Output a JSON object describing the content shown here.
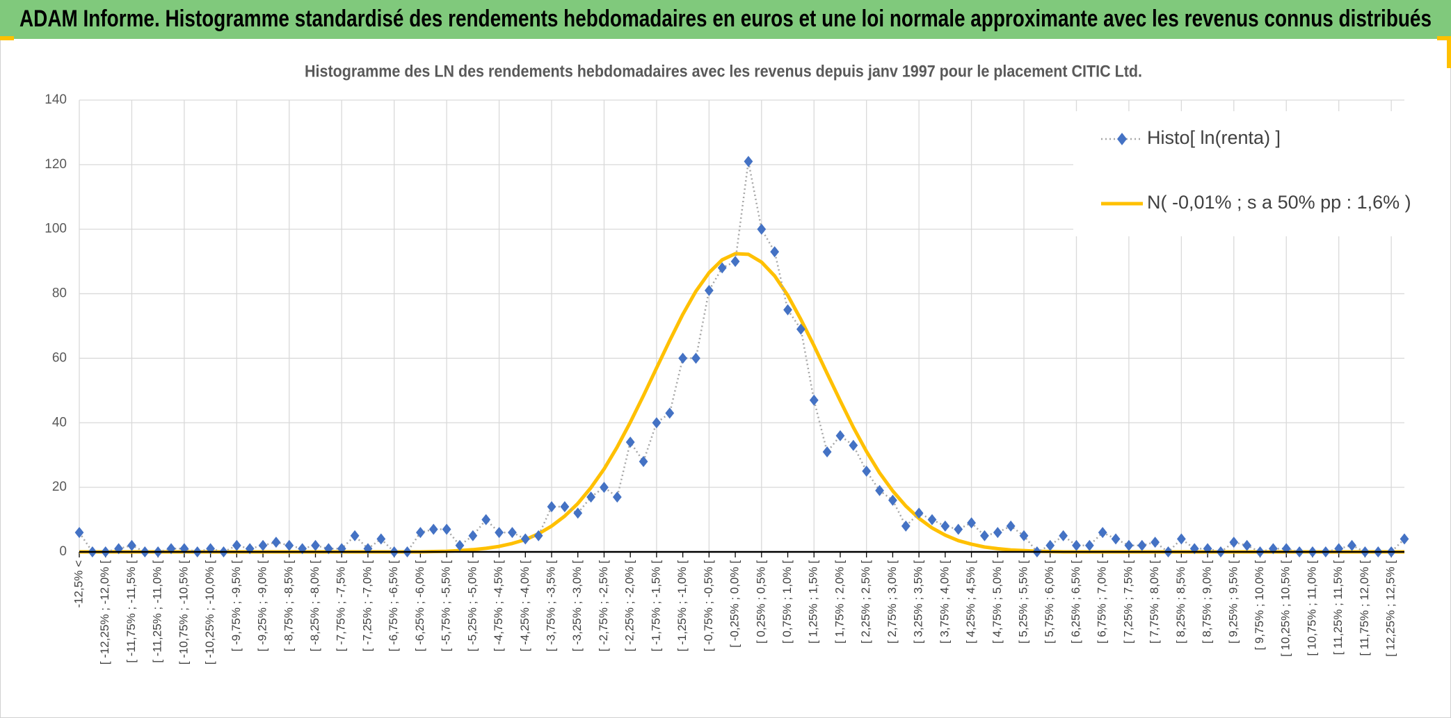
{
  "banner": "ADAM Informe. Histogramme standardisé des rendements hebdomadaires en euros et une loi normale approximante avec les revenus connus distribués",
  "chart_data": {
    "type": "line",
    "title": "Histogramme des LN des rendements hebdomadaires avec les revenus depuis janv 1997 pour le placement CITIC Ltd.",
    "categories": [
      "-12,5% <",
      null,
      "[ -12,25% ; -12,0% [",
      null,
      "[ -11,75% ; -11,5% [",
      null,
      "[ -11,25% ; -11,0% [",
      null,
      "[ -10,75% ; -10,5% [",
      null,
      "[ -10,25% ; -10,0% [",
      null,
      "[ -9,75% ; -9,5% [",
      null,
      "[ -9,25% ; -9,0% [",
      null,
      "[ -8,75% ; -8,5% [",
      null,
      "[ -8,25% ; -8,0% [",
      null,
      "[ -7,75% ; -7,5% [",
      null,
      "[ -7,25% ; -7,0% [",
      null,
      "[ -6,75% ; -6,5% [",
      null,
      "[ -6,25% ; -6,0% [",
      null,
      "[ -5,75% ; -5,5% [",
      null,
      "[ -5,25% ; -5,0% [",
      null,
      "[ -4,75% ; -4,5% [",
      null,
      "[ -4,25% ; -4,0% [",
      null,
      "[ -3,75% ; -3,5% [",
      null,
      "[ -3,25% ; -3,0% [",
      null,
      "[ -2,75% ; -2,5% [",
      null,
      "[ -2,25% ; -2,0% [",
      null,
      "[ -1,75% ; -1,5% [",
      null,
      "[ -1,25% ; -1,0% [",
      null,
      "[ -0,75% ; -0,5% [",
      null,
      "[ -0,25% ; 0,0% [",
      null,
      "[ 0,25% ; 0,5% [",
      null,
      "[ 0,75% ; 1,0% [",
      null,
      "[ 1,25% ; 1,5% [",
      null,
      "[ 1,75% ; 2,0% [",
      null,
      "[ 2,25% ; 2,5% [",
      null,
      "[ 2,75% ; 3,0% [",
      null,
      "[ 3,25% ; 3,5% [",
      null,
      "[ 3,75% ; 4,0% [",
      null,
      "[ 4,25% ; 4,5% [",
      null,
      "[ 4,75% ; 5,0% [",
      null,
      "[ 5,25% ; 5,5% [",
      null,
      "[ 5,75% ; 6,0% [",
      null,
      "[ 6,25% ; 6,5% [",
      null,
      "[ 6,75% ; 7,0% [",
      null,
      "[ 7,25% ; 7,5% [",
      null,
      "[ 7,75% ; 8,0% [",
      null,
      "[ 8,25% ; 8,5% [",
      null,
      "[ 8,75% ; 9,0% [",
      null,
      "[ 9,25% ; 9,5% [",
      null,
      "[ 9,75% ; 10,0% [",
      null,
      "[ 10,25% ; 10,5% [",
      null,
      "[ 10,75% ; 11,0% [",
      null,
      "[ 11,25% ; 11,5% [",
      null,
      "[ 11,75% ; 12,0% [",
      null,
      "[ 12,25% ; 12,5% [",
      null
    ],
    "series": [
      {
        "name": "Histo[ ln(renta) ]",
        "color": "#4472c4",
        "line_color": "#a6a6a6",
        "marker": "diamond",
        "values": [
          6,
          0,
          0,
          1,
          2,
          0,
          0,
          1,
          1,
          0,
          1,
          0,
          2,
          1,
          2,
          3,
          2,
          1,
          2,
          1,
          1,
          5,
          1,
          4,
          0,
          0,
          6,
          7,
          7,
          2,
          5,
          10,
          6,
          6,
          4,
          5,
          14,
          14,
          12,
          17,
          20,
          17,
          34,
          28,
          40,
          43,
          60,
          60,
          81,
          88,
          90,
          121,
          100,
          93,
          75,
          69,
          47,
          31,
          36,
          33,
          25,
          19,
          16,
          8,
          12,
          10,
          8,
          7,
          9,
          5,
          6,
          8,
          5,
          0,
          2,
          5,
          2,
          2,
          6,
          4,
          2,
          2,
          3,
          0,
          4,
          1,
          1,
          0,
          3,
          2,
          0,
          1,
          1,
          0,
          0,
          0,
          1,
          2,
          0,
          0,
          0,
          4
        ]
      },
      {
        "name": "N( -0,01% ; s a 50% pp : 1,6% )",
        "color": "#ffc000",
        "values": [
          0,
          0,
          0,
          0,
          0,
          0,
          0,
          0,
          0,
          0,
          0,
          0,
          0,
          0,
          0,
          0,
          0,
          0,
          0,
          0,
          0,
          0,
          0,
          0,
          0,
          0,
          0,
          0.1,
          0.2,
          0.4,
          0.7,
          1.1,
          1.7,
          2.6,
          3.8,
          5.6,
          8.0,
          11.1,
          15.0,
          19.9,
          25.7,
          32.5,
          40.2,
          48.4,
          57.0,
          65.5,
          73.6,
          80.8,
          86.5,
          90.5,
          92.4,
          92.2,
          89.8,
          85.5,
          79.5,
          72.0,
          63.9,
          55.3,
          46.8,
          38.6,
          31.1,
          24.5,
          18.9,
          14.2,
          10.4,
          7.4,
          5.2,
          3.5,
          2.4,
          1.5,
          1.0,
          0.6,
          0.4,
          0.2,
          0.1,
          0,
          0,
          0,
          0,
          0,
          0,
          0,
          0,
          0,
          0,
          0,
          0,
          0,
          0,
          0,
          0,
          0,
          0,
          0,
          0,
          0,
          0,
          0,
          0,
          0,
          0,
          0
        ]
      }
    ],
    "ylim": [
      0,
      140
    ],
    "yticks": [
      0,
      20,
      40,
      60,
      80,
      100,
      120,
      140
    ],
    "grid": true,
    "legend": "top-right"
  }
}
